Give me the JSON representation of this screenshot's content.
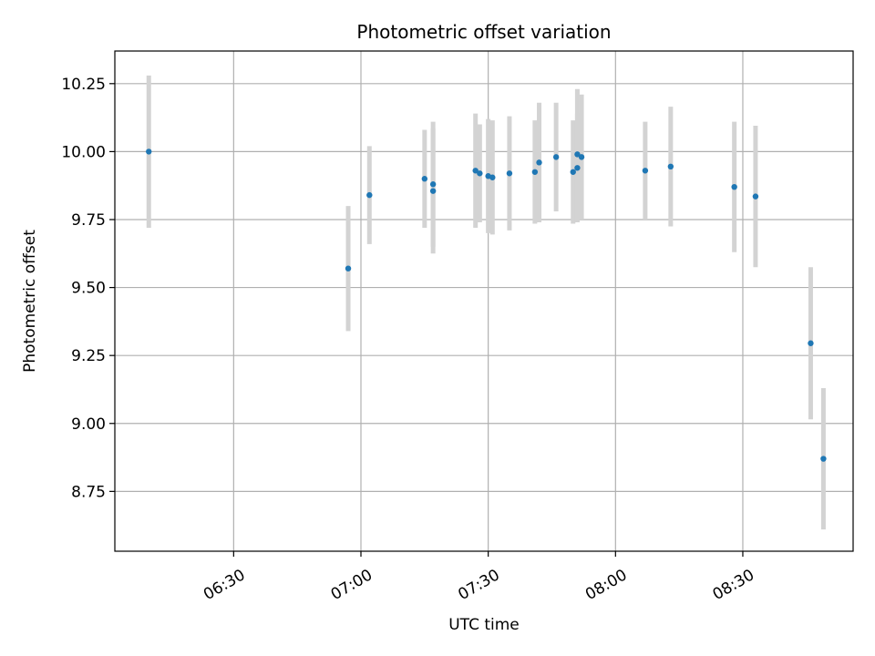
{
  "chart_data": {
    "type": "scatter",
    "title": "Photometric offset variation",
    "xlabel": "UTC time",
    "ylabel": "Photometric offset",
    "x_axis_type": "time",
    "xlim": [
      "06:02",
      "08:56"
    ],
    "ylim": [
      8.53,
      10.37
    ],
    "x_ticks": [
      "06:30",
      "07:00",
      "07:30",
      "08:00",
      "08:30"
    ],
    "y_ticks": [
      8.75,
      9.0,
      9.25,
      9.5,
      9.75,
      10.0,
      10.25
    ],
    "y_tick_labels": [
      "8.75",
      "9.00",
      "9.25",
      "9.50",
      "9.75",
      "10.00",
      "10.25"
    ],
    "grid": true,
    "marker_color": "#1f77b4",
    "errorbar_color": "#d3d3d3",
    "series": [
      {
        "points": [
          {
            "t": "06:10",
            "y": 10.0,
            "err": 0.28
          },
          {
            "t": "06:57",
            "y": 9.57,
            "err": 0.23
          },
          {
            "t": "07:02",
            "y": 9.84,
            "err": 0.18
          },
          {
            "t": "07:15",
            "y": 9.9,
            "err": 0.18
          },
          {
            "t": "07:17",
            "y": 9.88,
            "err": 0.23
          },
          {
            "t": "07:17",
            "y": 9.855,
            "err": 0.23
          },
          {
            "t": "07:27",
            "y": 9.93,
            "err": 0.21
          },
          {
            "t": "07:28",
            "y": 9.92,
            "err": 0.18
          },
          {
            "t": "07:30",
            "y": 9.91,
            "err": 0.21
          },
          {
            "t": "07:31",
            "y": 9.905,
            "err": 0.21
          },
          {
            "t": "07:35",
            "y": 9.92,
            "err": 0.21
          },
          {
            "t": "07:41",
            "y": 9.925,
            "err": 0.19
          },
          {
            "t": "07:42",
            "y": 9.96,
            "err": 0.22
          },
          {
            "t": "07:46",
            "y": 9.98,
            "err": 0.2
          },
          {
            "t": "07:50",
            "y": 9.925,
            "err": 0.19
          },
          {
            "t": "07:51",
            "y": 9.94,
            "err": 0.2
          },
          {
            "t": "07:51",
            "y": 9.99,
            "err": 0.24
          },
          {
            "t": "07:52",
            "y": 9.98,
            "err": 0.23
          },
          {
            "t": "08:07",
            "y": 9.93,
            "err": 0.18
          },
          {
            "t": "08:13",
            "y": 9.945,
            "err": 0.22
          },
          {
            "t": "08:28",
            "y": 9.87,
            "err": 0.24
          },
          {
            "t": "08:33",
            "y": 9.835,
            "err": 0.26
          },
          {
            "t": "08:46",
            "y": 9.295,
            "err": 0.28
          },
          {
            "t": "08:49",
            "y": 8.87,
            "err": 0.26
          }
        ]
      }
    ]
  }
}
